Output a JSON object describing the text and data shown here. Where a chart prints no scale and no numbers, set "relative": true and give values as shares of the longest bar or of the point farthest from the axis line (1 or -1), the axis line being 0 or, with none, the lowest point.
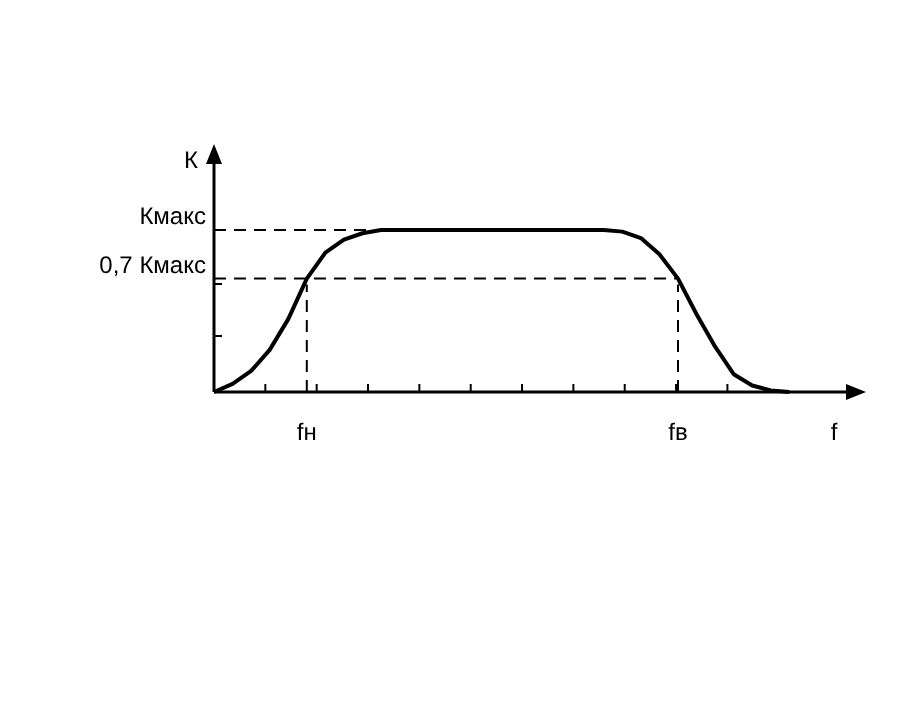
{
  "chart_data": {
    "type": "line",
    "relative": true,
    "xlabel": "f",
    "ylabel": "К",
    "categories": [
      null,
      null,
      null,
      null,
      null,
      "fн",
      null,
      null,
      null,
      null,
      null,
      null,
      null,
      null,
      null,
      null,
      null,
      null,
      null,
      null,
      null,
      null,
      null,
      null,
      null,
      "fв",
      null,
      null,
      null,
      null,
      null,
      null
    ],
    "series": [
      {
        "color": "#000000",
        "marker": "none",
        "line_style": "solid",
        "values": [
          0,
          0.05,
          0.13,
          0.26,
          0.45,
          0.7,
          0.86,
          0.94,
          0.98,
          1,
          1,
          1,
          1,
          1,
          1,
          1,
          1,
          1,
          1,
          1,
          1,
          1,
          0.99,
          0.95,
          0.85,
          0.7,
          0.48,
          0.28,
          0.11,
          0.04,
          0.01,
          0
        ]
      }
    ],
    "ref_lines": [
      {
        "axis": "y",
        "value": 1,
        "label": "Кмакс",
        "line_style": "dashed"
      },
      {
        "axis": "y",
        "value": 0.7,
        "label": "0,7 Кмакс",
        "line_style": "dashed"
      }
    ]
  }
}
